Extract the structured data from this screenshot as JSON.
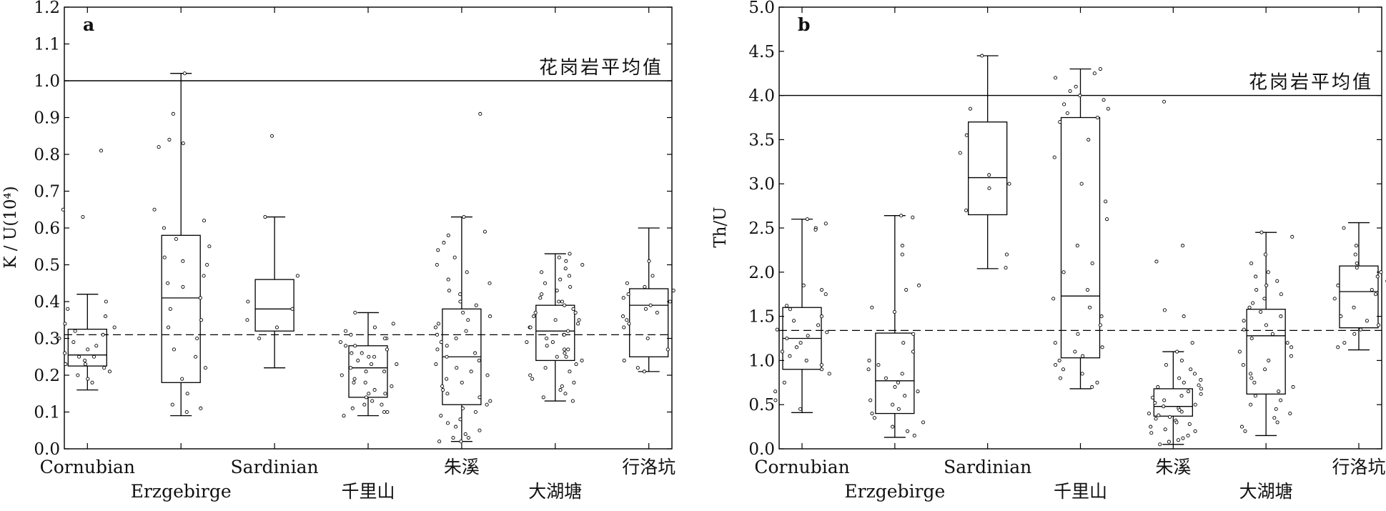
{
  "chart_data": [
    {
      "type": "box",
      "panel_label": "a",
      "ylabel": "K / U(10⁴)",
      "ylim": [
        0,
        1.2
      ],
      "y_ticks": [
        "0.0",
        "0.1",
        "0.2",
        "0.3",
        "0.4",
        "0.5",
        "0.6",
        "0.7",
        "0.8",
        "0.9",
        "1.0",
        "1.1",
        "1.2"
      ],
      "reference_line": {
        "value": 1.0,
        "label": "花岗岩平均值"
      },
      "dashed_line": {
        "value": 0.31
      },
      "categories": [
        "Cornubian",
        "Erzgebirge",
        "Sardinian",
        "千里山",
        "朱溪",
        "大湖塘",
        "行洛坑"
      ],
      "boxes": [
        {
          "name": "Cornubian",
          "whisker_low": 0.16,
          "q1": 0.225,
          "median": 0.255,
          "q3": 0.325,
          "whisker_high": 0.42,
          "points": [
            0.81,
            0.65,
            0.63,
            0.4,
            0.38,
            0.36,
            0.34,
            0.33,
            0.32,
            0.31,
            0.3,
            0.29,
            0.28,
            0.27,
            0.26,
            0.25,
            0.25,
            0.24,
            0.23,
            0.23,
            0.22,
            0.21,
            0.2,
            0.19,
            0.18
          ]
        },
        {
          "name": "Erzgebirge",
          "whisker_low": 0.09,
          "q1": 0.18,
          "median": 0.41,
          "q3": 0.58,
          "whisker_high": 1.02,
          "points": [
            1.02,
            0.91,
            0.84,
            0.83,
            0.82,
            0.65,
            0.62,
            0.6,
            0.57,
            0.55,
            0.52,
            0.51,
            0.5,
            0.47,
            0.45,
            0.44,
            0.41,
            0.38,
            0.35,
            0.33,
            0.3,
            0.27,
            0.25,
            0.22,
            0.19,
            0.15,
            0.12,
            0.11,
            0.1
          ]
        },
        {
          "name": "Sardinian",
          "whisker_low": 0.22,
          "q1": 0.32,
          "median": 0.38,
          "q3": 0.46,
          "whisker_high": 0.63,
          "points": [
            0.85,
            0.63,
            0.47,
            0.4,
            0.38,
            0.35,
            0.33,
            0.3
          ]
        },
        {
          "name": "千里山",
          "whisker_low": 0.09,
          "q1": 0.14,
          "median": 0.22,
          "q3": 0.28,
          "whisker_high": 0.37,
          "points": [
            0.37,
            0.34,
            0.33,
            0.32,
            0.31,
            0.3,
            0.3,
            0.29,
            0.28,
            0.28,
            0.27,
            0.26,
            0.26,
            0.25,
            0.25,
            0.24,
            0.23,
            0.23,
            0.22,
            0.21,
            0.21,
            0.2,
            0.19,
            0.18,
            0.18,
            0.17,
            0.16,
            0.15,
            0.15,
            0.14,
            0.13,
            0.12,
            0.12,
            0.11,
            0.1,
            0.1,
            0.09
          ]
        },
        {
          "name": "朱溪",
          "whisker_low": 0.02,
          "q1": 0.12,
          "median": 0.25,
          "q3": 0.38,
          "whisker_high": 0.63,
          "points": [
            0.91,
            0.63,
            0.59,
            0.58,
            0.56,
            0.54,
            0.52,
            0.5,
            0.48,
            0.46,
            0.45,
            0.43,
            0.42,
            0.4,
            0.39,
            0.37,
            0.36,
            0.35,
            0.34,
            0.33,
            0.32,
            0.31,
            0.3,
            0.29,
            0.28,
            0.27,
            0.26,
            0.25,
            0.24,
            0.23,
            0.22,
            0.21,
            0.2,
            0.19,
            0.18,
            0.17,
            0.16,
            0.15,
            0.14,
            0.13,
            0.12,
            0.11,
            0.1,
            0.09,
            0.08,
            0.07,
            0.06,
            0.05,
            0.04,
            0.03,
            0.03,
            0.02,
            0.02
          ]
        },
        {
          "name": "大湖塘",
          "whisker_low": 0.13,
          "q1": 0.24,
          "median": 0.32,
          "q3": 0.39,
          "whisker_high": 0.53,
          "points": [
            0.53,
            0.52,
            0.51,
            0.5,
            0.49,
            0.48,
            0.47,
            0.46,
            0.45,
            0.44,
            0.43,
            0.42,
            0.41,
            0.4,
            0.4,
            0.39,
            0.38,
            0.37,
            0.37,
            0.36,
            0.35,
            0.35,
            0.34,
            0.33,
            0.33,
            0.32,
            0.31,
            0.31,
            0.3,
            0.29,
            0.29,
            0.28,
            0.27,
            0.27,
            0.26,
            0.25,
            0.25,
            0.24,
            0.23,
            0.22,
            0.21,
            0.2,
            0.19,
            0.18,
            0.17,
            0.16,
            0.15,
            0.14,
            0.13
          ]
        },
        {
          "name": "行洛坑",
          "whisker_low": 0.21,
          "q1": 0.25,
          "median": 0.39,
          "q3": 0.435,
          "whisker_high": 0.6,
          "points": [
            0.51,
            0.47,
            0.45,
            0.44,
            0.43,
            0.42,
            0.41,
            0.4,
            0.39,
            0.38,
            0.37,
            0.36,
            0.35,
            0.34,
            0.33,
            0.3,
            0.27,
            0.24,
            0.22,
            0.21
          ]
        }
      ]
    },
    {
      "type": "box",
      "panel_label": "b",
      "ylabel": "Th/U",
      "ylim": [
        0,
        5.0
      ],
      "y_ticks": [
        "0.0",
        "0.5",
        "1.0",
        "1.5",
        "2.0",
        "2.5",
        "3.0",
        "3.5",
        "4.0",
        "4.5",
        "5.0"
      ],
      "reference_line": {
        "value": 4.0,
        "label": "花岗岩平均值"
      },
      "dashed_line": {
        "value": 1.34
      },
      "categories": [
        "Cornubian",
        "Erzgebirge",
        "Sardinian",
        "千里山",
        "朱溪",
        "大湖塘",
        "行洛坑"
      ],
      "boxes": [
        {
          "name": "Cornubian",
          "whisker_low": 0.41,
          "q1": 0.9,
          "median": 1.25,
          "q3": 1.6,
          "whisker_high": 2.6,
          "points": [
            2.6,
            2.55,
            2.5,
            2.48,
            1.85,
            1.8,
            1.75,
            1.62,
            1.58,
            1.5,
            1.45,
            1.4,
            1.35,
            1.32,
            1.28,
            1.25,
            1.2,
            1.15,
            1.1,
            1.05,
            1.0,
            0.95,
            0.9,
            0.85,
            0.75,
            0.65,
            0.55,
            0.45
          ]
        },
        {
          "name": "Erzgebirge",
          "whisker_low": 0.13,
          "q1": 0.4,
          "median": 0.77,
          "q3": 1.31,
          "whisker_high": 2.64,
          "points": [
            2.64,
            2.62,
            2.3,
            2.2,
            1.85,
            1.8,
            1.6,
            1.55,
            1.3,
            1.2,
            1.1,
            1.0,
            0.95,
            0.9,
            0.85,
            0.8,
            0.75,
            0.7,
            0.65,
            0.6,
            0.55,
            0.5,
            0.45,
            0.4,
            0.35,
            0.3,
            0.25,
            0.2,
            0.15
          ]
        },
        {
          "name": "Sardinian",
          "whisker_low": 2.04,
          "q1": 2.65,
          "median": 3.07,
          "q3": 3.7,
          "whisker_high": 4.45,
          "points": [
            4.45,
            3.85,
            3.55,
            3.35,
            3.1,
            3.0,
            2.95,
            2.7,
            2.2,
            2.05
          ]
        },
        {
          "name": "千里山",
          "whisker_low": 0.68,
          "q1": 1.03,
          "median": 1.73,
          "q3": 3.75,
          "whisker_high": 4.3,
          "points": [
            4.3,
            4.25,
            4.2,
            4.1,
            4.05,
            4.0,
            3.95,
            3.9,
            3.85,
            3.8,
            3.75,
            3.7,
            3.5,
            3.3,
            3.0,
            2.8,
            2.6,
            2.3,
            2.1,
            2.0,
            1.8,
            1.7,
            1.6,
            1.5,
            1.4,
            1.3,
            1.2,
            1.15,
            1.1,
            1.05,
            1.0,
            0.95,
            0.9,
            0.85,
            0.8,
            0.75,
            0.7
          ]
        },
        {
          "name": "朱溪",
          "whisker_low": 0.05,
          "q1": 0.37,
          "median": 0.48,
          "q3": 0.68,
          "whisker_high": 1.1,
          "points": [
            3.93,
            2.3,
            2.12,
            1.57,
            1.5,
            1.2,
            1.1,
            1.0,
            0.95,
            0.9,
            0.85,
            0.8,
            0.78,
            0.75,
            0.72,
            0.7,
            0.68,
            0.65,
            0.62,
            0.6,
            0.58,
            0.55,
            0.52,
            0.5,
            0.48,
            0.46,
            0.44,
            0.42,
            0.4,
            0.38,
            0.36,
            0.34,
            0.32,
            0.3,
            0.28,
            0.25,
            0.22,
            0.2,
            0.18,
            0.15,
            0.12,
            0.1,
            0.08,
            0.05
          ]
        },
        {
          "name": "大湖塘",
          "whisker_low": 0.15,
          "q1": 0.62,
          "median": 1.28,
          "q3": 1.58,
          "whisker_high": 2.45,
          "points": [
            2.45,
            2.4,
            2.2,
            2.1,
            2.0,
            1.95,
            1.9,
            1.85,
            1.8,
            1.75,
            1.7,
            1.65,
            1.6,
            1.55,
            1.5,
            1.45,
            1.4,
            1.35,
            1.3,
            1.25,
            1.2,
            1.15,
            1.1,
            1.05,
            1.0,
            0.95,
            0.9,
            0.85,
            0.8,
            0.75,
            0.7,
            0.65,
            0.6,
            0.55,
            0.5,
            0.45,
            0.4,
            0.35,
            0.3,
            0.25,
            0.2
          ]
        },
        {
          "name": "行洛坑",
          "whisker_low": 1.12,
          "q1": 1.37,
          "median": 1.78,
          "q3": 2.07,
          "whisker_high": 2.56,
          "points": [
            2.5,
            2.3,
            2.2,
            2.1,
            2.05,
            2.0,
            1.95,
            1.9,
            1.85,
            1.8,
            1.75,
            1.7,
            1.6,
            1.5,
            1.45,
            1.4,
            1.35,
            1.3,
            1.2,
            1.15
          ]
        }
      ]
    }
  ]
}
